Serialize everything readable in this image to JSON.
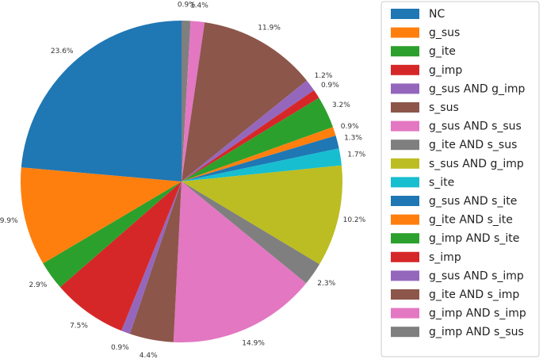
{
  "chart_data": {
    "type": "pie",
    "start_angle": "top",
    "direction": "clockwise",
    "legend_position": "right",
    "slices": [
      {
        "label": "g_imp AND s_sus",
        "value": 0.9,
        "pct_label": "0.9%",
        "color": "#7f7f7f"
      },
      {
        "label": "g_imp AND s_imp",
        "value": 1.4,
        "pct_label": "1.4%",
        "color": "#e377c2"
      },
      {
        "label": "g_ite AND s_imp",
        "value": 11.9,
        "pct_label": "11.9%",
        "color": "#8c564b"
      },
      {
        "label": "g_sus AND s_imp",
        "value": 1.2,
        "pct_label": "1.2%",
        "color": "#9467bd"
      },
      {
        "label": "s_imp",
        "value": 0.9,
        "pct_label": "0.9%",
        "color": "#d62728"
      },
      {
        "label": "g_imp AND s_ite",
        "value": 3.2,
        "pct_label": "3.2%",
        "color": "#2ca02c"
      },
      {
        "label": "g_ite AND s_ite",
        "value": 0.9,
        "pct_label": "0.9%",
        "color": "#ff7f0e"
      },
      {
        "label": "g_sus AND s_ite",
        "value": 1.3,
        "pct_label": "1.3%",
        "color": "#1f77b4"
      },
      {
        "label": "s_ite",
        "value": 1.7,
        "pct_label": "1.7%",
        "color": "#17becf"
      },
      {
        "label": "s_sus AND g_imp",
        "value": 10.2,
        "pct_label": "10.2%",
        "color": "#bcbd22"
      },
      {
        "label": "g_ite AND s_sus",
        "value": 2.3,
        "pct_label": "2.3%",
        "color": "#7f7f7f"
      },
      {
        "label": "g_sus AND s_sus",
        "value": 14.9,
        "pct_label": "14.9%",
        "color": "#e377c2"
      },
      {
        "label": "s_sus",
        "value": 4.4,
        "pct_label": "4.4%",
        "color": "#8c564b"
      },
      {
        "label": "g_sus AND g_imp",
        "value": 0.9,
        "pct_label": "0.9%",
        "color": "#9467bd"
      },
      {
        "label": "g_imp",
        "value": 7.5,
        "pct_label": "7.5%",
        "color": "#d62728"
      },
      {
        "label": "g_ite",
        "value": 2.9,
        "pct_label": "2.9%",
        "color": "#2ca02c"
      },
      {
        "label": "g_sus",
        "value": 9.9,
        "pct_label": "9.9%",
        "color": "#ff7f0e"
      },
      {
        "label": "NC",
        "value": 23.6,
        "pct_label": "23.6%",
        "color": "#1f77b4"
      }
    ],
    "legend": [
      {
        "label": "NC",
        "color": "#1f77b4"
      },
      {
        "label": "g_sus",
        "color": "#ff7f0e"
      },
      {
        "label": "g_ite",
        "color": "#2ca02c"
      },
      {
        "label": "g_imp",
        "color": "#d62728"
      },
      {
        "label": "g_sus AND g_imp",
        "color": "#9467bd"
      },
      {
        "label": "s_sus",
        "color": "#8c564b"
      },
      {
        "label": "g_sus AND s_sus",
        "color": "#e377c2"
      },
      {
        "label": "g_ite AND s_sus",
        "color": "#7f7f7f"
      },
      {
        "label": "s_sus AND g_imp",
        "color": "#bcbd22"
      },
      {
        "label": "s_ite",
        "color": "#17becf"
      },
      {
        "label": "g_sus AND s_ite",
        "color": "#1f77b4"
      },
      {
        "label": "g_ite AND s_ite",
        "color": "#ff7f0e"
      },
      {
        "label": "g_imp AND s_ite",
        "color": "#2ca02c"
      },
      {
        "label": "s_imp",
        "color": "#d62728"
      },
      {
        "label": "g_sus AND s_imp",
        "color": "#9467bd"
      },
      {
        "label": "g_ite AND s_imp",
        "color": "#8c564b"
      },
      {
        "label": "g_imp AND s_imp",
        "color": "#e377c2"
      },
      {
        "label": "g_imp AND s_sus",
        "color": "#7f7f7f"
      }
    ]
  }
}
